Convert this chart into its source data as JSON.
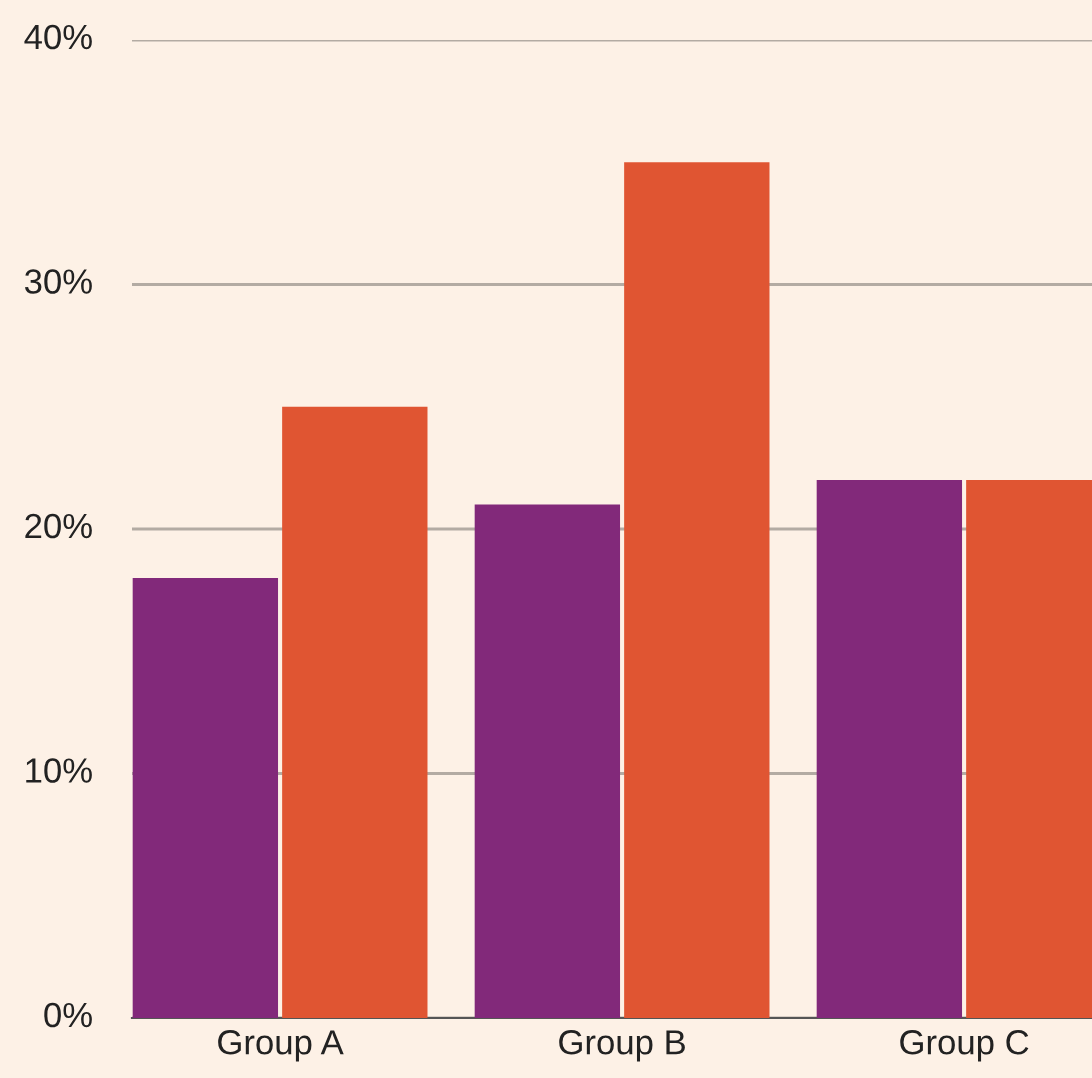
{
  "chart_data": {
    "type": "bar",
    "categories": [
      "Group A",
      "Group B",
      "Group C"
    ],
    "series": [
      {
        "color": "#82297a",
        "values": [
          18,
          21,
          22
        ]
      },
      {
        "color": "#e05532",
        "values": [
          25,
          35,
          22
        ]
      }
    ],
    "ylim": [
      0,
      40
    ],
    "yticks": [
      {
        "value": 0,
        "label": "0%"
      },
      {
        "value": 10,
        "label": "10%"
      },
      {
        "value": 20,
        "label": "20%"
      },
      {
        "value": 30,
        "label": "30%"
      },
      {
        "value": 40,
        "label": "40%"
      }
    ],
    "grid": "y"
  }
}
